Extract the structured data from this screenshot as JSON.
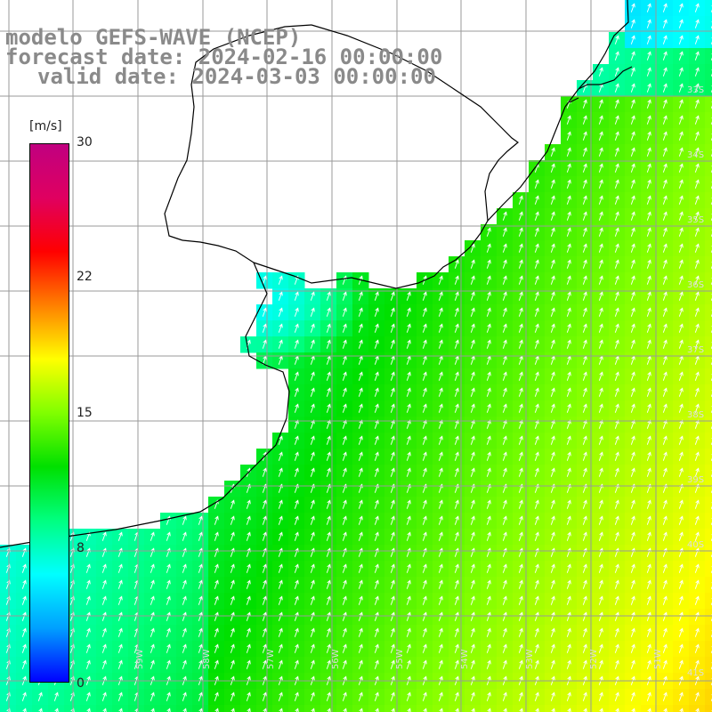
{
  "title": {
    "model": "modelo GEFS-WAVE (NCEP)",
    "forecast": "forecast date: 2024-02-16 00:00:00",
    "valid": "valid date: 2024-03-03 00:00:00"
  },
  "colorbar": {
    "unit": "[m/s]",
    "min": 0,
    "max": 30,
    "ticks": [
      "30",
      "22",
      "15",
      "8",
      "0"
    ],
    "tick_values": [
      30,
      22,
      15,
      8,
      0
    ],
    "stops": [
      "#0000ff",
      "#00a0ff",
      "#00ffff",
      "#00ff80",
      "#00e000",
      "#80ff00",
      "#ffff00",
      "#ff8000",
      "#ff0000",
      "#e00060",
      "#c00080"
    ]
  },
  "map": {
    "lon_labels": [
      "59W",
      "58W",
      "57W",
      "56W",
      "55W",
      "54W",
      "53W",
      "52W",
      "51W"
    ],
    "lat_labels": [
      "33S",
      "34S",
      "35S",
      "36S",
      "37S",
      "38S",
      "39S",
      "40S",
      "41S"
    ],
    "wind_direction": "toward north-northeast"
  }
}
